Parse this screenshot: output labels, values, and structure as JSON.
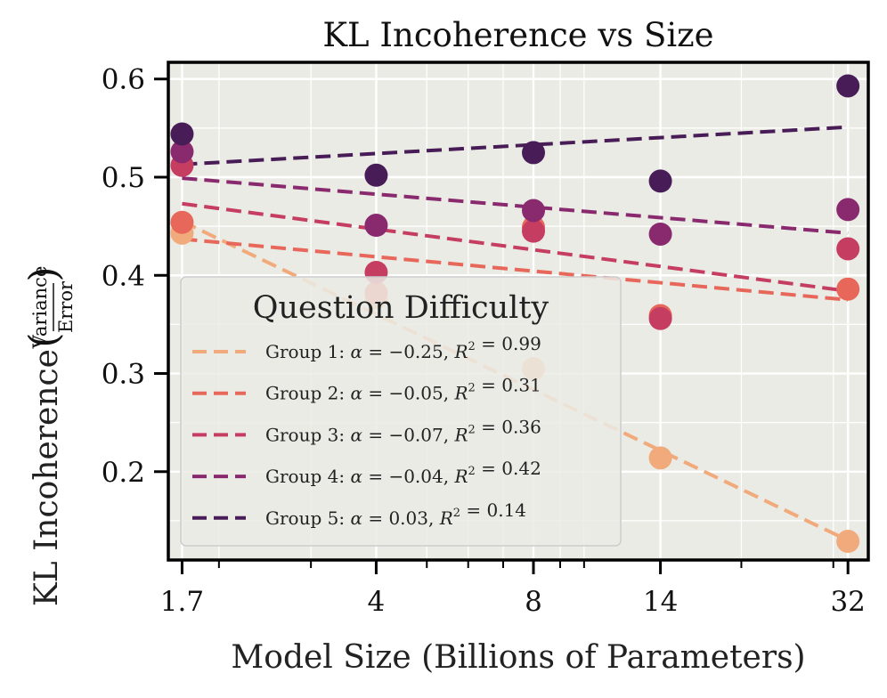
{
  "chart_data": {
    "type": "scatter",
    "title": "KL Incoherence vs Size",
    "xlabel": "Model Size (Billions of Parameters)",
    "ylabel_main": "KL Incoherence",
    "ylabel_frac_num": "Variance",
    "ylabel_frac_den": "Error",
    "xscale": "log",
    "xlim": [
      1.6,
      35
    ],
    "ylim": [
      0.11,
      0.617
    ],
    "x": [
      1.7,
      4,
      8,
      14,
      32
    ],
    "x_tick_labels": [
      "1.7",
      "4",
      "8",
      "14",
      "32"
    ],
    "y_ticks": [
      0.2,
      0.3,
      0.4,
      0.5,
      0.6
    ],
    "y_tick_labels": [
      "0.2",
      "0.3",
      "0.4",
      "0.5",
      "0.6"
    ],
    "grid": true,
    "legend_title": "Question Difficulty",
    "legend_position": "lower-left",
    "series": [
      {
        "name": "Group 1",
        "group_label": "Group 1:",
        "alpha": "−0.25",
        "r2": "0.99",
        "color": "#f1aa7c",
        "values": [
          0.443,
          0.377,
          0.305,
          0.214,
          0.129
        ],
        "fit": [
          0.455,
          0.13
        ]
      },
      {
        "name": "Group 2",
        "group_label": "Group 2:",
        "alpha": "−0.05",
        "r2": "0.31",
        "color": "#e7685b",
        "values": [
          0.454,
          0.382,
          0.449,
          0.359,
          0.386
        ],
        "fit": [
          0.437,
          0.375
        ]
      },
      {
        "name": "Group 3",
        "group_label": "Group 3:",
        "alpha": "−0.07",
        "r2": "0.36",
        "color": "#c63d62",
        "values": [
          0.512,
          0.403,
          0.445,
          0.356,
          0.427
        ],
        "fit": [
          0.473,
          0.384
        ]
      },
      {
        "name": "Group 4",
        "group_label": "Group 4:",
        "alpha": "−0.04",
        "r2": "0.42",
        "color": "#892a6f",
        "values": [
          0.526,
          0.451,
          0.466,
          0.442,
          0.467
        ],
        "fit": [
          0.499,
          0.443
        ]
      },
      {
        "name": "Group 5",
        "group_label": "Group 5:",
        "alpha": "0.03",
        "r2": "0.14",
        "color": "#481d57",
        "values": [
          0.544,
          0.502,
          0.525,
          0.496,
          0.593
        ],
        "fit": [
          0.513,
          0.551
        ]
      }
    ]
  }
}
